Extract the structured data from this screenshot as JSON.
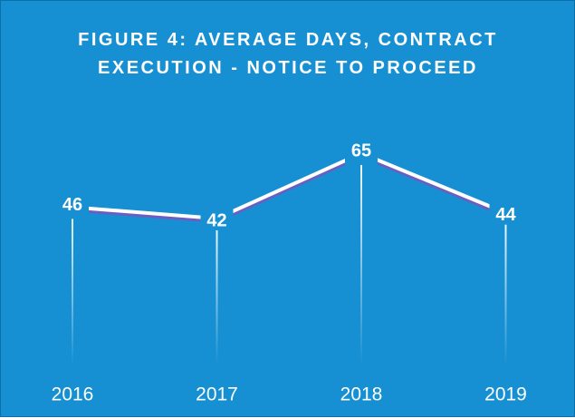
{
  "chart_data": {
    "type": "line",
    "title": "FIGURE 4: AVERAGE DAYS, CONTRACT EXECUTION - NOTICE TO PROCEED",
    "categories": [
      "2016",
      "2017",
      "2018",
      "2019"
    ],
    "values": [
      46,
      42,
      65,
      44
    ],
    "color": "#ffffff"
  }
}
